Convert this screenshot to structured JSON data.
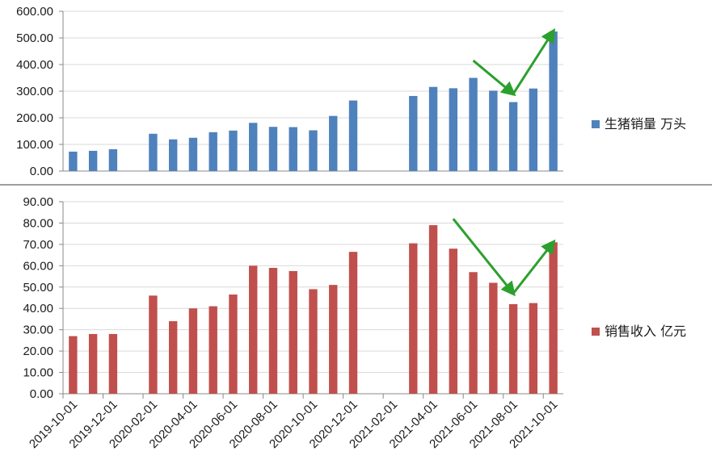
{
  "chart_data": [
    {
      "type": "bar",
      "categories": [
        "2019-10-01",
        "2019-11-01",
        "2019-12-01",
        "2020-01-01",
        "2020-02-01",
        "2020-03-01",
        "2020-04-01",
        "2020-05-01",
        "2020-06-01",
        "2020-07-01",
        "2020-08-01",
        "2020-09-01",
        "2020-10-01",
        "2020-11-01",
        "2020-12-01",
        "2021-01-01",
        "2021-02-01",
        "2021-03-01",
        "2021-04-01",
        "2021-05-01",
        "2021-06-01",
        "2021-07-01",
        "2021-08-01",
        "2021-09-01",
        "2021-10-01"
      ],
      "series": [
        {
          "name": "生猪销量 万头",
          "color": "#4f81bd",
          "values": [
            73,
            76,
            82,
            null,
            140,
            119,
            125,
            146,
            152,
            181,
            166,
            165,
            153,
            207,
            265,
            null,
            null,
            282,
            316,
            311,
            350,
            302,
            259,
            310,
            524
          ]
        }
      ],
      "ylim": [
        0,
        600
      ],
      "yticks": [
        "0.00",
        "100.00",
        "200.00",
        "300.00",
        "400.00",
        "500.00",
        "600.00"
      ],
      "ytick_values": [
        0,
        100,
        200,
        300,
        400,
        500,
        600
      ],
      "grid": true,
      "legend": "right",
      "annotations": [
        {
          "type": "arrow",
          "color": "#2ca02c",
          "from": {
            "x": "2021-06-01",
            "y": 415
          },
          "to": {
            "x": "2021-08-01",
            "y": 290
          }
        },
        {
          "type": "arrow",
          "color": "#2ca02c",
          "from": {
            "x": "2021-08-01",
            "y": 290
          },
          "to": {
            "x": "2021-10-01",
            "y": 525
          }
        }
      ]
    },
    {
      "type": "bar",
      "categories": [
        "2019-10-01",
        "2019-11-01",
        "2019-12-01",
        "2020-01-01",
        "2020-02-01",
        "2020-03-01",
        "2020-04-01",
        "2020-05-01",
        "2020-06-01",
        "2020-07-01",
        "2020-08-01",
        "2020-09-01",
        "2020-10-01",
        "2020-11-01",
        "2020-12-01",
        "2021-01-01",
        "2021-02-01",
        "2021-03-01",
        "2021-04-01",
        "2021-05-01",
        "2021-06-01",
        "2021-07-01",
        "2021-08-01",
        "2021-09-01",
        "2021-10-01"
      ],
      "series": [
        {
          "name": "销售收入 亿元",
          "color": "#c0504d",
          "values": [
            27,
            28,
            28,
            null,
            46,
            34,
            40,
            41,
            46.5,
            60,
            59,
            57.5,
            49,
            51,
            66.5,
            null,
            null,
            70.5,
            79,
            68,
            57,
            52,
            42,
            42.5,
            71
          ]
        }
      ],
      "ylim": [
        0,
        90
      ],
      "yticks": [
        "0.00",
        "10.00",
        "20.00",
        "30.00",
        "40.00",
        "50.00",
        "60.00",
        "70.00",
        "80.00",
        "90.00"
      ],
      "ytick_values": [
        0,
        10,
        20,
        30,
        40,
        50,
        60,
        70,
        80,
        90
      ],
      "xtick_labels": [
        "2019-10-01",
        "2019-12-01",
        "2020-02-01",
        "2020-04-01",
        "2020-06-01",
        "2020-08-01",
        "2020-10-01",
        "2020-12-01",
        "2021-02-01",
        "2021-04-01",
        "2021-06-01",
        "2021-08-01",
        "2021-10-01"
      ],
      "grid": true,
      "legend": "right",
      "annotations": [
        {
          "type": "arrow",
          "color": "#2ca02c",
          "from": {
            "x": "2021-05-01",
            "y": 82
          },
          "to": {
            "x": "2021-08-01",
            "y": 47
          }
        },
        {
          "type": "arrow",
          "color": "#2ca02c",
          "from": {
            "x": "2021-08-01",
            "y": 47
          },
          "to": {
            "x": "2021-10-01",
            "y": 71
          }
        }
      ]
    }
  ]
}
